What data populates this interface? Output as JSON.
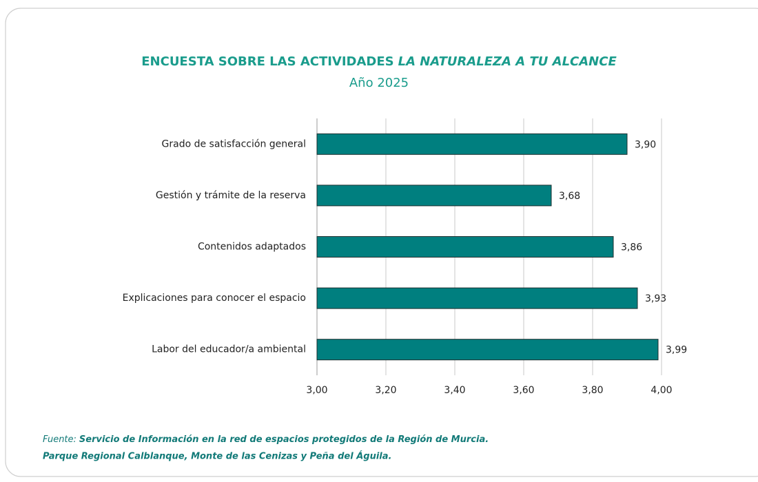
{
  "chart_data": {
    "type": "bar",
    "orientation": "horizontal",
    "title": [
      "ENCUESTA SOBRE LAS ACTIVIDADES",
      "LA NATURALEZA A TU ALCANCE"
    ],
    "subtitle": "Año 2025",
    "categories": [
      "Grado de satisfacción general",
      "Gestión y trámite de la reserva",
      "Contenidos adaptados",
      "Explicaciones para conocer el espacio",
      "Labor del educador/a ambiental"
    ],
    "values": [
      3.9,
      3.68,
      3.86,
      3.93,
      3.99
    ],
    "value_labels": [
      "3,90",
      "3,68",
      "3,86",
      "3,93",
      "3,99"
    ],
    "color": "#007f7f",
    "xlim": [
      3,
      4
    ],
    "xticks": [
      {
        "value": 3,
        "label": "3,00"
      },
      {
        "value": 3.2,
        "label": "3,20"
      },
      {
        "value": 3.4,
        "label": "3,40"
      },
      {
        "value": 3.6,
        "label": "3,60"
      },
      {
        "value": 3.8,
        "label": "3,80"
      },
      {
        "value": 4,
        "label": "4,00"
      }
    ],
    "grid": true,
    "source": [
      "Fuente:",
      "Servicio de Información en la red de espacios protegidos de la Región de Murcia.",
      "Parque Regional Calblanque, Monte de las Cenizas y Peña del Águila."
    ]
  }
}
